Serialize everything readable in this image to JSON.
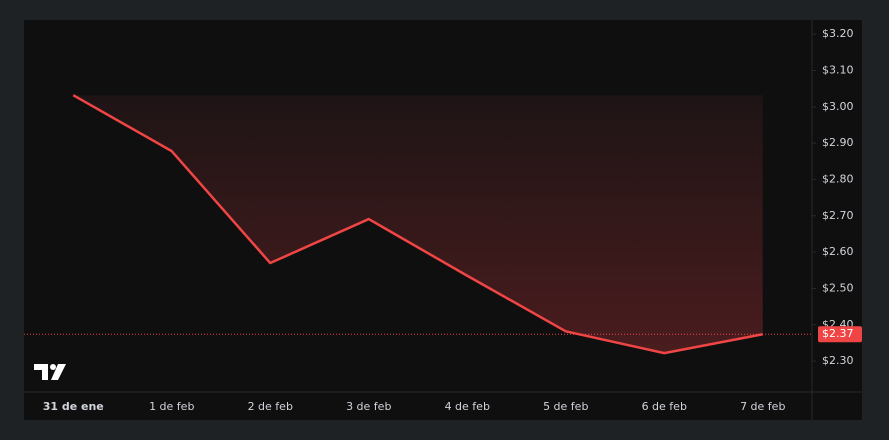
{
  "chart_data": {
    "type": "line",
    "x": [
      "31 de ene",
      "1 de feb",
      "2 de feb",
      "3 de feb",
      "4 de feb",
      "5 de feb",
      "6 de feb",
      "7 de feb"
    ],
    "series": [
      {
        "color": "#f04545",
        "values": [
          3.032,
          2.878,
          2.57,
          2.691,
          2.535,
          2.382,
          2.322,
          2.374
        ],
        "value_labels": [
          null,
          null,
          null,
          null,
          null,
          null,
          null,
          "$2.37"
        ]
      }
    ],
    "ylim": [
      2.215,
      3.239
    ],
    "yticks": [
      {
        "value": 2.3,
        "label": "$2.30"
      },
      {
        "value": 2.4,
        "label": "$2.40"
      },
      {
        "value": 2.5,
        "label": "$2.50"
      },
      {
        "value": 2.6,
        "label": "$2.60"
      },
      {
        "value": 2.7,
        "label": "$2.70"
      },
      {
        "value": 2.8,
        "label": "$2.80"
      },
      {
        "value": 2.9,
        "label": "$2.90"
      },
      {
        "value": 3.0,
        "label": "$3.00"
      },
      {
        "value": 3.1,
        "label": "$3.10"
      },
      {
        "value": 3.2,
        "label": "$3.20"
      }
    ]
  }
}
